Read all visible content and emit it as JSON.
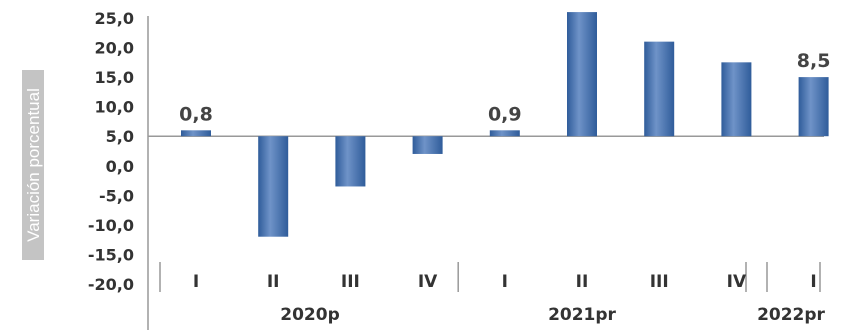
{
  "chart_data": {
    "type": "bar",
    "ylabel": "Variación porcentual",
    "ylim": [
      -20,
      25
    ],
    "yticks": [
      "25,0",
      "20,0",
      "15,0",
      "10,0",
      "5,0",
      "0,0",
      "-5,0",
      "-10,0",
      "-15,0",
      "-20,0"
    ],
    "categories": [
      "I",
      "II",
      "III",
      "IV",
      "I",
      "II",
      "III",
      "IV",
      "I"
    ],
    "groups": [
      {
        "label": "2020p",
        "count": 4
      },
      {
        "label": "2021pr",
        "count": 4
      },
      {
        "label": "2022pr",
        "count": 1
      }
    ],
    "baseline": 5,
    "values": [
      6.0,
      -12.0,
      -3.5,
      2.0,
      6.0,
      26.0,
      21.0,
      17.5,
      15.0
    ],
    "data_labels": [
      "0,8",
      "",
      "",
      "",
      "0,9",
      "",
      "",
      "",
      "8,5"
    ],
    "colors": {
      "bar": "#2f5c9a",
      "bar_highlight": "#6f93c8",
      "axis": "#999999",
      "ylabel_bg": "#c4c4c4"
    }
  }
}
